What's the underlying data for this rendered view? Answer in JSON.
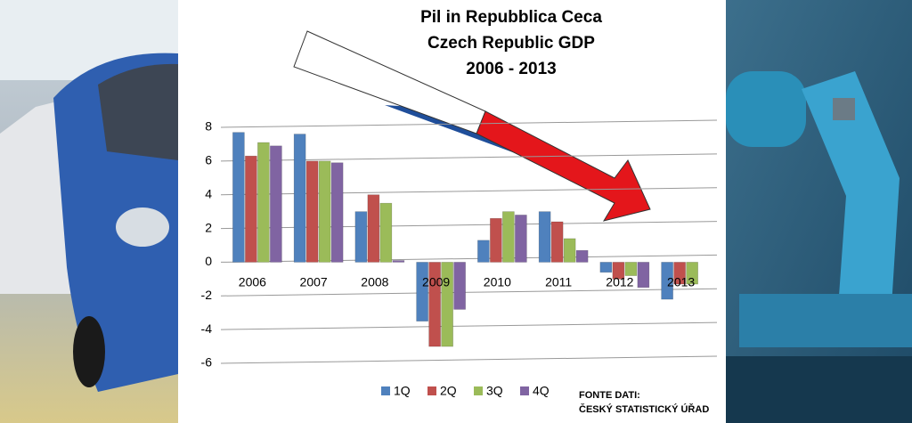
{
  "chart_data": {
    "type": "bar",
    "title": [
      "Pil in Repubblica Ceca",
      "Czech Republic GDP",
      "2006 - 2013"
    ],
    "categories": [
      "2006",
      "2007",
      "2008",
      "2009",
      "2010",
      "2011",
      "2012",
      "2013"
    ],
    "series": [
      {
        "name": "1Q",
        "color": "#4f81bd",
        "values": [
          7.7,
          7.6,
          3.0,
          -3.5,
          1.3,
          3.0,
          -0.6,
          -2.2
        ]
      },
      {
        "name": "2Q",
        "color": "#c0504d",
        "values": [
          6.3,
          6.0,
          4.0,
          -5.0,
          2.6,
          2.4,
          -1.0,
          -1.3
        ]
      },
      {
        "name": "3Q",
        "color": "#9bbb59",
        "values": [
          7.1,
          6.0,
          3.5,
          -5.0,
          3.0,
          1.4,
          -0.8,
          -1.3
        ]
      },
      {
        "name": "4Q",
        "color": "#8064a2",
        "values": [
          6.9,
          5.9,
          0.1,
          -2.8,
          2.8,
          0.7,
          -1.5,
          null
        ]
      }
    ],
    "ylim": [
      -6,
      8
    ],
    "yticks": [
      -6,
      -4,
      -2,
      0,
      2,
      4,
      6,
      8
    ],
    "grid": true,
    "source": [
      "FONTE DATI:",
      "ČESKÝ STATISTICKÝ ÚŘAD"
    ]
  }
}
